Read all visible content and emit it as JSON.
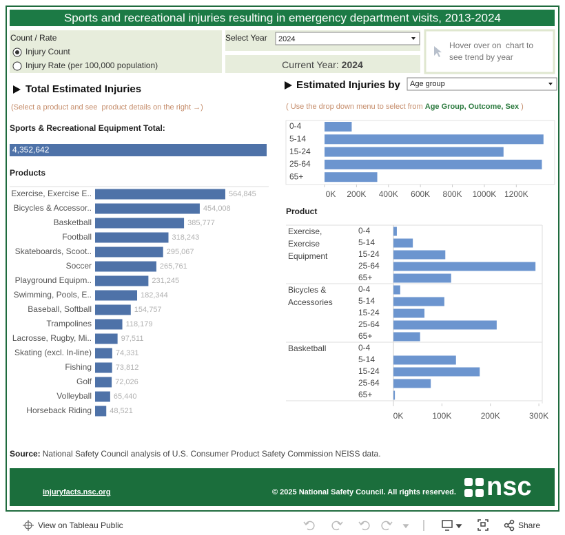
{
  "header": {
    "title": "Sports and recreational injuries resulting in emergency department visits, 2013-2024"
  },
  "controls": {
    "measure_label": "Count / Rate",
    "measure_options": [
      "Injury Count",
      "Injury Rate (per 100,000 population)"
    ],
    "selected_index": 0,
    "year_label": "Select Year",
    "year_value": "2024",
    "current_year_label": "Current Year:",
    "current_year": "2024",
    "hover_note": "Hover over on  chart to see trend by year"
  },
  "left_panel": {
    "title": "Total Estimated Injuries",
    "hint": "(Select a product and see  product details on the right →)",
    "total_label": "Sports & Recreational Equipment Total:",
    "products_label": "Products"
  },
  "right_panel": {
    "title": "Estimated Injuries by",
    "dropdown": "Age group",
    "hint_start": "( Use the drop down menu to select from ",
    "hint_options": "Age Group, Outcome, Sex",
    "hint_end": " )",
    "product_label": "Product"
  },
  "source": {
    "label": "Source:",
    "text": "National Safety Council analysis of U.S. Consumer Product Safety Commission NEISS data."
  },
  "footer": {
    "link": "injuryfacts.nsc.org",
    "copyright": "© 2025 National Safety Council. All rights reserved.",
    "logo": "nsc"
  },
  "toolbar": {
    "view": "View on Tableau Public",
    "share": "Share"
  },
  "chart_data": [
    {
      "type": "bar",
      "orientation": "horizontal",
      "categories": [
        null
      ],
      "values": [
        4352642
      ],
      "value_labels": [
        "4,352,642"
      ],
      "color": "#4e72a8"
    },
    {
      "type": "bar",
      "orientation": "horizontal",
      "categories": [
        "Exercise, Exercise E..",
        "Bicycles & Accessor..",
        "Basketball",
        "Football",
        "Skateboards, Scoot..",
        "Soccer",
        "Playground Equipm..",
        "Swimming, Pools, E..",
        "Baseball, Softball",
        "Trampolines",
        "Lacrosse, Rugby, Mi..",
        "Skating (excl. In-line)",
        "Fishing",
        "Golf",
        "Volleyball",
        "Horseback Riding"
      ],
      "values": [
        564845,
        454008,
        385777,
        318243,
        295067,
        265761,
        231245,
        182344,
        154757,
        118179,
        97511,
        74331,
        73812,
        72026,
        65440,
        48521
      ],
      "value_labels": [
        "564,845",
        "454,008",
        "385,777",
        "318,243",
        "295,067",
        "265,761",
        "231,245",
        "182,344",
        "154,757",
        "118,179",
        "97,511",
        "74,331",
        "73,812",
        "72,026",
        "65,440",
        "48,521"
      ],
      "color": "#4e72a8"
    },
    {
      "type": "bar",
      "orientation": "horizontal",
      "categories": [
        "0-4",
        "5-14",
        "15-24",
        "25-64",
        "65+"
      ],
      "values": [
        170000,
        1370000,
        1120000,
        1360000,
        330000
      ],
      "xlim": [
        0,
        1440000
      ],
      "xticks": [
        {
          "value": 0,
          "label": "0K"
        },
        {
          "value": 200000,
          "label": "200K"
        },
        {
          "value": 400000,
          "label": "400K"
        },
        {
          "value": 600000,
          "label": "600K"
        },
        {
          "value": 800000,
          "label": "800K"
        },
        {
          "value": 1000000,
          "label": "1000K"
        },
        {
          "value": 1200000,
          "label": "1200K"
        }
      ],
      "color": "#6c95cf"
    },
    {
      "type": "bar",
      "orientation": "horizontal",
      "categories": [
        "0-4",
        "5-14",
        "15-24",
        "25-64",
        "65+"
      ],
      "panels": [
        {
          "name": "Exercise, Exercise Equipment",
          "values": [
            7000,
            40000,
            107000,
            293000,
            119000
          ]
        },
        {
          "name": "Bicycles & Accessories",
          "values": [
            14000,
            105000,
            64000,
            213000,
            55000
          ]
        },
        {
          "name": "Basketball",
          "values": [
            0,
            129000,
            178000,
            77000,
            3000
          ]
        }
      ],
      "xlim": [
        0,
        307000
      ],
      "xticks": [
        {
          "value": 0,
          "label": "0K"
        },
        {
          "value": 100000,
          "label": "100K"
        },
        {
          "value": 200000,
          "label": "200K"
        },
        {
          "value": 300000,
          "label": "300K"
        }
      ],
      "color": "#6c95cf"
    }
  ]
}
